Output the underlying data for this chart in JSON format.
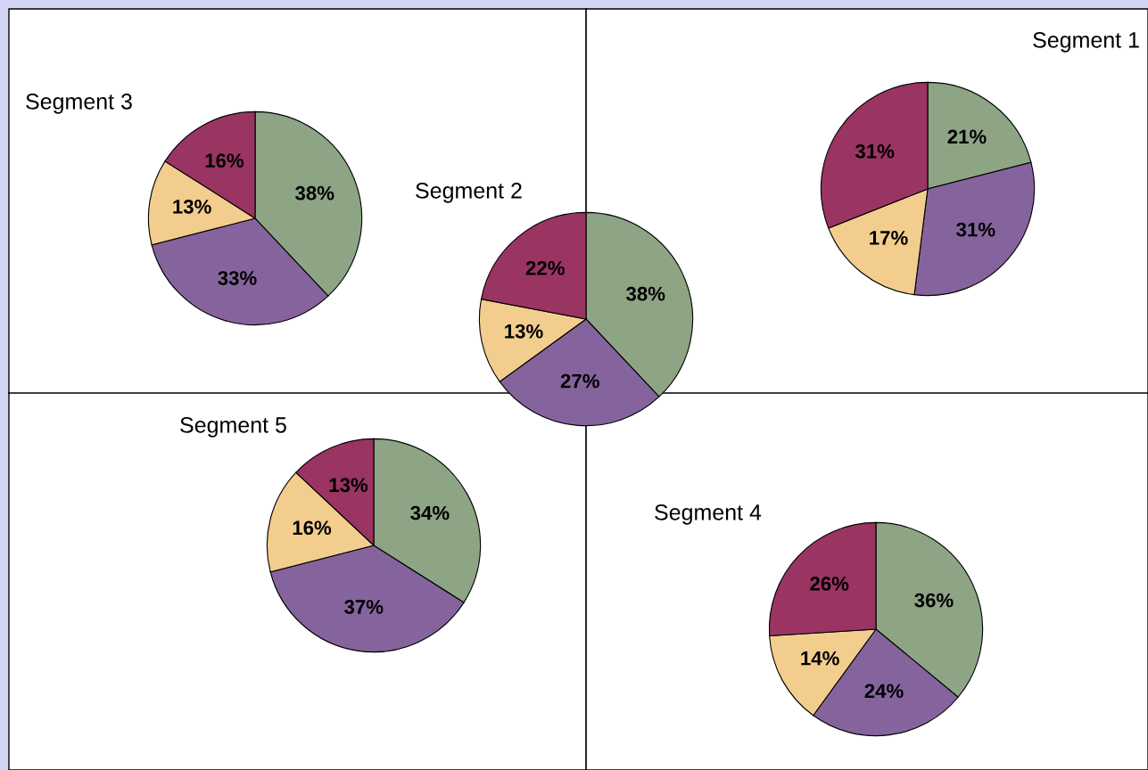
{
  "chart_data": [
    {
      "type": "pie",
      "title": "Segment 1",
      "categories": [
        null,
        null,
        null,
        null
      ],
      "values": [
        21,
        31,
        17,
        31
      ],
      "colors": [
        "#8da585",
        "#85649d",
        "#f2cd8e",
        "#9a3463"
      ],
      "value_labels": [
        "21%",
        "31%",
        "17%",
        "31%"
      ]
    },
    {
      "type": "pie",
      "title": "Segment 3",
      "categories": [
        null,
        null,
        null,
        null
      ],
      "values": [
        38,
        33,
        13,
        16
      ],
      "colors": [
        "#8da585",
        "#85649d",
        "#f2cd8e",
        "#9a3463"
      ],
      "value_labels": [
        "38%",
        "33%",
        "13%",
        "16%"
      ]
    },
    {
      "type": "pie",
      "title": "Segment 2",
      "categories": [
        null,
        null,
        null,
        null
      ],
      "values": [
        38,
        27,
        13,
        22
      ],
      "colors": [
        "#8da585",
        "#85649d",
        "#f2cd8e",
        "#9a3463"
      ],
      "value_labels": [
        "38%",
        "27%",
        "13%",
        "22%"
      ]
    },
    {
      "type": "pie",
      "title": "Segment 5",
      "categories": [
        null,
        null,
        null,
        null
      ],
      "values": [
        34,
        37,
        16,
        13
      ],
      "colors": [
        "#8da585",
        "#85649d",
        "#f2cd8e",
        "#9a3463"
      ],
      "value_labels": [
        "34%",
        "37%",
        "16%",
        "13%"
      ]
    },
    {
      "type": "pie",
      "title": "Segment 4",
      "categories": [
        null,
        null,
        null,
        null
      ],
      "values": [
        36,
        24,
        14,
        26
      ],
      "colors": [
        "#8da585",
        "#85649d",
        "#f2cd8e",
        "#9a3463"
      ],
      "value_labels": [
        "36%",
        "24%",
        "14%",
        "26%"
      ]
    }
  ]
}
